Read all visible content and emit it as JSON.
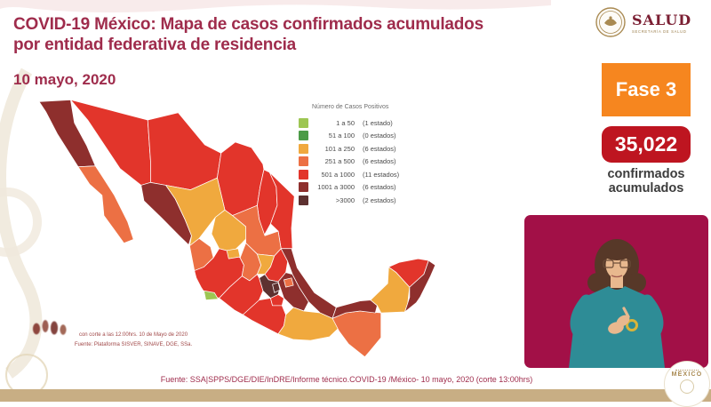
{
  "slide": {
    "title_line1": "COVID-19 México: Mapa de casos confirmados acumulados",
    "title_line2": "por entidad federativa de residencia",
    "date": "10 mayo, 2020"
  },
  "logo": {
    "name": "SALUD",
    "subtitle": "SECRETARÍA DE SALUD"
  },
  "phase_badge": {
    "label": "Fase 3",
    "color": "#F6861F"
  },
  "total_badge": {
    "value": "35,022",
    "color": "#BE1520",
    "caption_line1": "confirmados",
    "caption_line2": "acumulados"
  },
  "legend": {
    "title": "Número de Casos Positivos",
    "items": [
      {
        "range": "1 a 50",
        "count": "(1 estado)",
        "color": "#9DC653"
      },
      {
        "range": "51 a 100",
        "count": "(0 estados)",
        "color": "#4C9B47"
      },
      {
        "range": "101 a 250",
        "count": "(6 estados)",
        "color": "#F0A93E"
      },
      {
        "range": "251 a 500",
        "count": "(6 estados)",
        "color": "#EC7044"
      },
      {
        "range": "501 a 1000",
        "count": "(11 estados)",
        "color": "#E2352B"
      },
      {
        "range": "1001 a 3000",
        "count": "(6 estados)",
        "color": "#8E2F2D"
      },
      {
        "range": ">3000",
        "count": "(2 estados)",
        "color": "#5D3130"
      }
    ]
  },
  "map": {
    "note_line1": "con corte a las 12:00hrs. 10 de Mayo de 2020",
    "note_line2": "Fuente: Plataforma SISVER, SINAVE, DGE, SSa.",
    "states": [
      {
        "id": "sonora",
        "name": "Sonora",
        "category": 4
      },
      {
        "id": "chihuahua",
        "name": "Chihuahua",
        "category": 4
      },
      {
        "id": "coahuila",
        "name": "Coahuila",
        "category": 4
      },
      {
        "id": "nuevo-leon",
        "name": "Nuevo León",
        "category": 4
      },
      {
        "id": "tamaulipas",
        "name": "Tamaulipas",
        "category": 4
      },
      {
        "id": "baja-california",
        "name": "Baja California",
        "category": 5
      },
      {
        "id": "baja-california-sur",
        "name": "Baja California Sur",
        "category": 3
      },
      {
        "id": "sinaloa",
        "name": "Sinaloa",
        "category": 5
      },
      {
        "id": "durango",
        "name": "Durango",
        "category": 2
      },
      {
        "id": "zacatecas",
        "name": "Zacatecas",
        "category": 2
      },
      {
        "id": "san-luis-potosi",
        "name": "San Luis Potosí",
        "category": 3
      },
      {
        "id": "nayarit",
        "name": "Nayarit",
        "category": 3
      },
      {
        "id": "jalisco",
        "name": "Jalisco",
        "category": 4
      },
      {
        "id": "guanajuato",
        "name": "Guanajuato",
        "category": 3
      },
      {
        "id": "queretaro",
        "name": "Querétaro",
        "category": 2
      },
      {
        "id": "hidalgo",
        "name": "Hidalgo",
        "category": 4
      },
      {
        "id": "mexico-state",
        "name": "Estado de México",
        "category": 6
      },
      {
        "id": "michoacan",
        "name": "Michoacán",
        "category": 4
      },
      {
        "id": "guerrero",
        "name": "Guerrero",
        "category": 4
      },
      {
        "id": "puebla",
        "name": "Puebla",
        "category": 5
      },
      {
        "id": "veracruz",
        "name": "Veracruz",
        "category": 5
      },
      {
        "id": "oaxaca",
        "name": "Oaxaca",
        "category": 2
      },
      {
        "id": "chiapas",
        "name": "Chiapas",
        "category": 3
      },
      {
        "id": "tabasco",
        "name": "Tabasco",
        "category": 5
      },
      {
        "id": "campeche",
        "name": "Campeche",
        "category": 2
      },
      {
        "id": "yucatan",
        "name": "Yucatán",
        "category": 4
      },
      {
        "id": "quintana-roo",
        "name": "Quintana Roo",
        "category": 5
      },
      {
        "id": "aguascalientes",
        "name": "Aguascalientes",
        "category": 2
      },
      {
        "id": "tlaxcala",
        "name": "Tlaxcala",
        "category": 3
      },
      {
        "id": "mexico-city",
        "name": "Ciudad de México",
        "category": 6
      },
      {
        "id": "morelos",
        "name": "Morelos",
        "category": 4
      },
      {
        "id": "colima",
        "name": "Colima",
        "category": 0
      }
    ]
  },
  "footer": {
    "source": "Fuente: SSA|SPPS/DGE/DIE/InDRE/Informe técnico.COVID-19 /México- 10 mayo, 2020 (corte 13:00hrs)"
  },
  "gov_badge": {
    "label": "MÉXICO"
  },
  "interpreter": {
    "panel_color": "#A21047",
    "sweater_color": "#2E8C96"
  }
}
